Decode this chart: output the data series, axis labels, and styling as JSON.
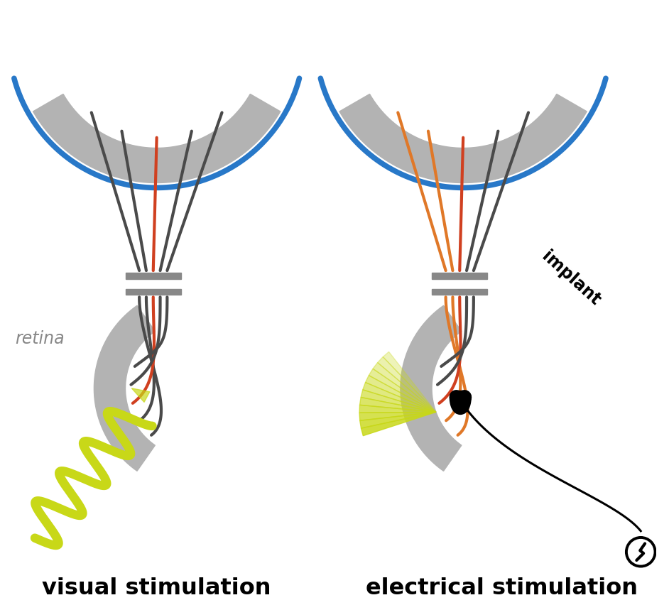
{
  "bg_color": "#ffffff",
  "gray_color": "#b3b3b3",
  "dark_gray": "#4a4a4a",
  "mid_gray": "#888888",
  "blue_color": "#2878c8",
  "red_color": "#d04020",
  "orange_color": "#e07828",
  "yellow_green": "#c8d818",
  "title_left": "visual stimulation",
  "title_right": "electrical stimulation",
  "label_retina": "retina",
  "label_implant": "implant"
}
